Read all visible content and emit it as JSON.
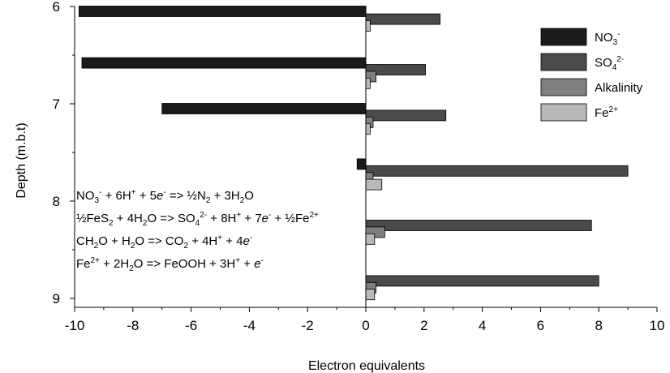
{
  "chart_data": {
    "type": "bar",
    "orientation": "horizontal",
    "xlabel": "Electron equivalents",
    "ylabel": "Depth (m.b.t)",
    "xlim": [
      -10,
      10
    ],
    "ylim": [
      5.95,
      9.2
    ],
    "y_inverted": true,
    "xticks": [
      "-10",
      "-8",
      "-6",
      "-4",
      "-2",
      "0",
      "2",
      "4",
      "6",
      "8",
      "10"
    ],
    "yticks": [
      "6",
      "7",
      "8",
      "9"
    ],
    "grid": false,
    "legend_position": "top-right",
    "series": [
      {
        "name": "NO3-",
        "label_base": "NO",
        "label_sub": "3",
        "label_sup": "-",
        "color": "#1a1a1a",
        "points": [
          {
            "depth": 6.05,
            "value": -9.85
          },
          {
            "depth": 6.58,
            "value": -9.75
          },
          {
            "depth": 7.05,
            "value": -7.0
          },
          {
            "depth": 7.62,
            "value": -0.3
          }
        ]
      },
      {
        "name": "SO4 2-",
        "label_base": "SO",
        "label_sub": "4",
        "label_sup": "2-",
        "color": "#4a4a4a",
        "points": [
          {
            "depth": 6.13,
            "value": 2.55
          },
          {
            "depth": 6.65,
            "value": 2.05
          },
          {
            "depth": 7.12,
            "value": 2.75
          },
          {
            "depth": 7.69,
            "value": 9.0
          },
          {
            "depth": 8.25,
            "value": 7.75
          },
          {
            "depth": 8.82,
            "value": 8.0
          }
        ]
      },
      {
        "name": "Alkalinity",
        "label_base": "Alkalinity",
        "label_sub": "",
        "label_sup": "",
        "color": "#7f7f7f",
        "points": [
          {
            "depth": 6.72,
            "value": 0.35
          },
          {
            "depth": 7.19,
            "value": 0.25
          },
          {
            "depth": 7.76,
            "value": 0.25
          },
          {
            "depth": 8.32,
            "value": 0.65
          },
          {
            "depth": 8.89,
            "value": 0.35
          }
        ]
      },
      {
        "name": "Fe2+",
        "label_base": "Fe",
        "label_sub": "",
        "label_sup": "2+",
        "color": "#b9b9b9",
        "points": [
          {
            "depth": 6.2,
            "value": 0.15
          },
          {
            "depth": 6.79,
            "value": 0.15
          },
          {
            "depth": 7.26,
            "value": 0.15
          },
          {
            "depth": 7.83,
            "value": 0.55
          },
          {
            "depth": 8.39,
            "value": 0.3
          },
          {
            "depth": 8.96,
            "value": 0.3
          }
        ]
      }
    ],
    "annotations": [
      [
        {
          "t": "NO"
        },
        {
          "t": "3",
          "s": "sub"
        },
        {
          "t": "-",
          "s": "sup"
        },
        {
          "t": " + 6H"
        },
        {
          "t": "+",
          "s": "sup"
        },
        {
          "t": " + 5"
        },
        {
          "t": "e",
          "s": "it"
        },
        {
          "t": "-",
          "s": "sup"
        },
        {
          "t": " => ½N"
        },
        {
          "t": "2",
          "s": "sub"
        },
        {
          "t": " + 3H"
        },
        {
          "t": "2",
          "s": "sub"
        },
        {
          "t": "O"
        }
      ],
      [
        {
          "t": "½FeS"
        },
        {
          "t": "2",
          "s": "sub"
        },
        {
          "t": " + 4H"
        },
        {
          "t": "2",
          "s": "sub"
        },
        {
          "t": "O => SO"
        },
        {
          "t": "4",
          "s": "sub"
        },
        {
          "t": "2-",
          "s": "sup"
        },
        {
          "t": " + 8H"
        },
        {
          "t": "+",
          "s": "sup"
        },
        {
          "t": " + 7"
        },
        {
          "t": "e",
          "s": "it"
        },
        {
          "t": "-",
          "s": "sup"
        },
        {
          "t": " + ½Fe"
        },
        {
          "t": "2+",
          "s": "sup"
        }
      ],
      [
        {
          "t": "CH"
        },
        {
          "t": "2",
          "s": "sub"
        },
        {
          "t": "O + H"
        },
        {
          "t": "2",
          "s": "sub"
        },
        {
          "t": "O => CO"
        },
        {
          "t": "2",
          "s": "sub"
        },
        {
          "t": " + 4H"
        },
        {
          "t": "+",
          "s": "sup"
        },
        {
          "t": " + 4"
        },
        {
          "t": "e",
          "s": "it"
        },
        {
          "t": "-",
          "s": "sup"
        }
      ],
      [
        {
          "t": "Fe"
        },
        {
          "t": "2+",
          "s": "sup"
        },
        {
          "t": " + 2H"
        },
        {
          "t": "2",
          "s": "sub"
        },
        {
          "t": "O => FeOOH + 3H"
        },
        {
          "t": "+",
          "s": "sup"
        },
        {
          "t": " + "
        },
        {
          "t": "e",
          "s": "it"
        },
        {
          "t": "-",
          "s": "sup"
        }
      ]
    ]
  }
}
